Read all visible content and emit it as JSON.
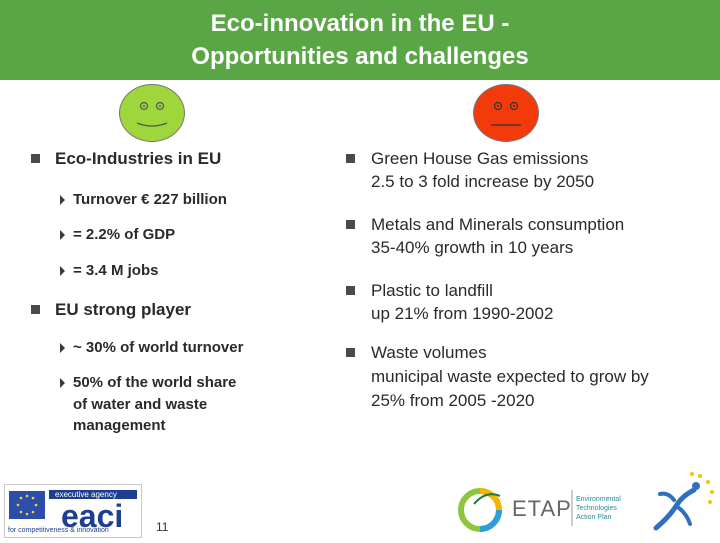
{
  "header": {
    "title_line1": "Eco-innovation in the EU -",
    "title_line2": "Opportunities and challenges"
  },
  "left": {
    "section1": "Eco-Industries in EU",
    "bullets1": [
      "Turnover € 227 billion",
      "= 2.2% of GDP",
      "= 3.4 M jobs"
    ],
    "section2": "EU strong player",
    "bullets2": [
      "~ 30% of world turnover",
      "50% of the world share",
      "of water and waste",
      "management"
    ]
  },
  "right": {
    "items": [
      {
        "line1": "Green House Gas emissions",
        "line2": "2.5 to 3 fold increase by 2050"
      },
      {
        "line1": "Metals and Minerals consumption",
        "line2": "35-40% growth in 10 years"
      },
      {
        "line1": "Plastic to landfill",
        "line2": "up 21% from 1990-2002"
      },
      {
        "line1": "Waste volumes",
        "line2": "municipal waste expected to grow by",
        "line3": "25% from 2005 -2020"
      }
    ]
  },
  "footer": {
    "eaci_agency": "executive agency",
    "eaci_name": "eaci",
    "eaci_tagline": "for competitiveness & innovation",
    "page_number": "11",
    "etap_name": "ETAP",
    "etap_tagline_1": "Environmental",
    "etap_tagline_2": "Technologies",
    "etap_tagline_3": "Action Plan"
  },
  "colors": {
    "header_green": "#5aa646",
    "face_green": "#9fd63c",
    "face_red": "#f23a0b"
  }
}
